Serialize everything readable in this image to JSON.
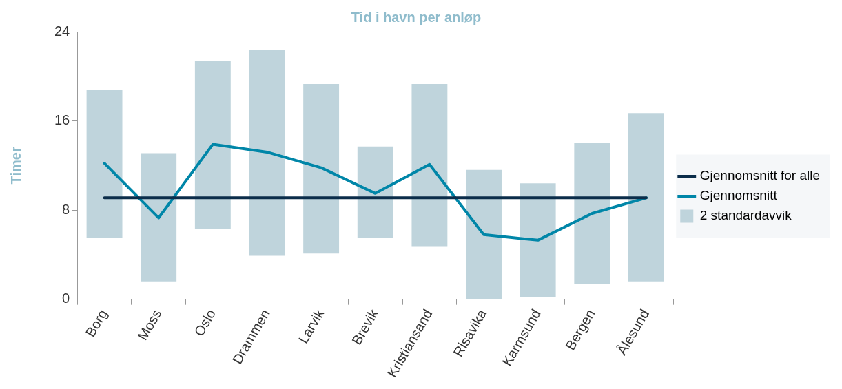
{
  "chart_data": {
    "type": "bar",
    "title": "Tid i havn per anløp",
    "ylabel": "Timer",
    "categories": [
      "Borg",
      "Moss",
      "Oslo",
      "Drammen",
      "Larvik",
      "Brevik",
      "Kristiansand",
      "Risavika",
      "Karmsund",
      "Bergen",
      "Ålesund"
    ],
    "series": [
      {
        "name": "Gjennomsnitt for alle",
        "type": "line",
        "color": "#0b2d4a",
        "values": [
          9.1,
          9.1,
          9.1,
          9.1,
          9.1,
          9.1,
          9.1,
          9.1,
          9.1,
          9.1,
          9.1
        ]
      },
      {
        "name": "Gjennomsnitt",
        "type": "line",
        "color": "#0086a8",
        "values": [
          12.2,
          7.3,
          13.9,
          13.2,
          11.8,
          9.5,
          12.1,
          5.8,
          5.3,
          7.7,
          9.1
        ]
      },
      {
        "name": "2 standardavvik",
        "color": "#bfd4dc",
        "base": [
          5.5,
          1.6,
          6.3,
          3.9,
          4.1,
          5.5,
          4.7,
          0,
          0.2,
          1.4,
          1.6
        ],
        "values": [
          13.3,
          11.5,
          15.1,
          18.5,
          15.2,
          8.2,
          14.6,
          11.6,
          10.2,
          12.6,
          15.1
        ]
      }
    ],
    "ylim": [
      0,
      24
    ],
    "yticks": [
      0,
      8,
      16,
      24
    ],
    "grid": false,
    "legend": "right",
    "marker": "none",
    "line_style": "solid"
  }
}
